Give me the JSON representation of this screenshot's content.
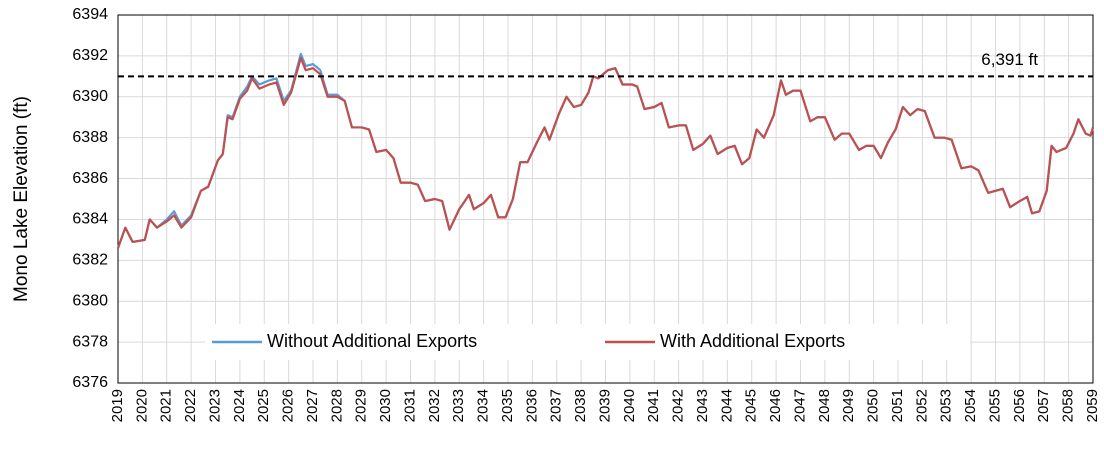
{
  "chart_data": {
    "type": "line",
    "y_label": "Mono Lake Elevation (ft)",
    "x": [
      2019.0,
      2019.3,
      2019.6,
      2020.1,
      2020.3,
      2020.6,
      2021.0,
      2021.3,
      2021.6,
      2022.0,
      2022.4,
      2022.7,
      2023.1,
      2023.3,
      2023.5,
      2023.7,
      2024.0,
      2024.3,
      2024.5,
      2024.8,
      2025.2,
      2025.5,
      2025.8,
      2026.1,
      2026.5,
      2026.7,
      2027.0,
      2027.3,
      2027.6,
      2028.0,
      2028.3,
      2028.6,
      2029.0,
      2029.3,
      2029.6,
      2030.0,
      2030.3,
      2030.6,
      2031.0,
      2031.3,
      2031.6,
      2032.0,
      2032.3,
      2032.6,
      2033.0,
      2033.4,
      2033.6,
      2034.0,
      2034.3,
      2034.6,
      2034.9,
      2035.2,
      2035.5,
      2035.8,
      2036.2,
      2036.5,
      2036.7,
      2037.1,
      2037.4,
      2037.7,
      2038.0,
      2038.3,
      2038.5,
      2038.7,
      2039.1,
      2039.4,
      2039.7,
      2040.1,
      2040.3,
      2040.6,
      2041.0,
      2041.3,
      2041.6,
      2042.0,
      2042.3,
      2042.6,
      2043.0,
      2043.3,
      2043.6,
      2044.0,
      2044.3,
      2044.6,
      2044.9,
      2045.2,
      2045.5,
      2045.9,
      2046.2,
      2046.4,
      2046.7,
      2047.0,
      2047.4,
      2047.7,
      2048.0,
      2048.4,
      2048.7,
      2049.0,
      2049.4,
      2049.7,
      2050.0,
      2050.3,
      2050.6,
      2050.9,
      2051.2,
      2051.5,
      2051.8,
      2052.1,
      2052.5,
      2052.9,
      2053.2,
      2053.6,
      2054.0,
      2054.3,
      2054.7,
      2055.0,
      2055.3,
      2055.6,
      2056.0,
      2056.3,
      2056.5,
      2056.8,
      2057.1,
      2057.3,
      2057.5,
      2057.9,
      2058.2,
      2058.4,
      2058.7,
      2058.9,
      2059.0
    ],
    "series": [
      {
        "name": "Without Additional Exports",
        "color": "#5b9bd5",
        "values": [
          6382.6,
          6383.6,
          6382.9,
          6383.0,
          6384.0,
          6383.6,
          6384.0,
          6384.4,
          6383.7,
          6384.2,
          6385.4,
          6385.6,
          6386.9,
          6387.2,
          6389.1,
          6389.0,
          6390.0,
          6390.5,
          6391.0,
          6390.6,
          6390.8,
          6390.9,
          6389.8,
          6390.3,
          6392.1,
          6391.5,
          6391.6,
          6391.3,
          6390.1,
          6390.1,
          6389.8,
          6388.5,
          6388.5,
          6388.4,
          6387.3,
          6387.4,
          6387.0,
          6385.8,
          6385.8,
          6385.7,
          6384.9,
          6385.0,
          6384.9,
          6383.5,
          6384.5,
          6385.2,
          6384.5,
          6384.8,
          6385.2,
          6384.1,
          6384.1,
          6385.0,
          6386.8,
          6386.8,
          6387.8,
          6388.5,
          6387.9,
          6389.2,
          6390.0,
          6389.5,
          6389.6,
          6390.2,
          6391.0,
          6390.9,
          6391.3,
          6391.4,
          6390.6,
          6390.6,
          6390.5,
          6389.4,
          6389.5,
          6389.7,
          6388.5,
          6388.6,
          6388.6,
          6387.4,
          6387.7,
          6388.1,
          6387.2,
          6387.5,
          6387.6,
          6386.7,
          6387.0,
          6388.4,
          6388.0,
          6389.1,
          6390.8,
          6390.1,
          6390.3,
          6390.3,
          6388.8,
          6389.0,
          6389.0,
          6387.9,
          6388.2,
          6388.2,
          6387.4,
          6387.6,
          6387.6,
          6387.0,
          6387.8,
          6388.4,
          6389.5,
          6389.1,
          6389.4,
          6389.3,
          6388.0,
          6388.0,
          6387.9,
          6386.5,
          6386.6,
          6386.4,
          6385.3,
          6385.4,
          6385.5,
          6384.6,
          6384.9,
          6385.1,
          6384.3,
          6384.4,
          6385.4,
          6387.6,
          6387.3,
          6387.5,
          6388.2,
          6388.9,
          6388.2,
          6388.1,
          6388.5
        ]
      },
      {
        "name": "With Additional Exports",
        "color": "#c0504d",
        "values": [
          6382.6,
          6383.6,
          6382.9,
          6383.0,
          6384.0,
          6383.6,
          6383.9,
          6384.2,
          6383.6,
          6384.1,
          6385.4,
          6385.6,
          6386.9,
          6387.2,
          6389.0,
          6388.9,
          6389.9,
          6390.3,
          6390.9,
          6390.4,
          6390.6,
          6390.7,
          6389.6,
          6390.2,
          6391.9,
          6391.3,
          6391.4,
          6391.1,
          6390.0,
          6390.0,
          6389.8,
          6388.5,
          6388.5,
          6388.4,
          6387.3,
          6387.4,
          6387.0,
          6385.8,
          6385.8,
          6385.7,
          6384.9,
          6385.0,
          6384.9,
          6383.5,
          6384.5,
          6385.2,
          6384.5,
          6384.8,
          6385.2,
          6384.1,
          6384.1,
          6385.0,
          6386.8,
          6386.8,
          6387.8,
          6388.5,
          6387.9,
          6389.2,
          6390.0,
          6389.5,
          6389.6,
          6390.2,
          6391.0,
          6390.9,
          6391.3,
          6391.4,
          6390.6,
          6390.6,
          6390.5,
          6389.4,
          6389.5,
          6389.7,
          6388.5,
          6388.6,
          6388.6,
          6387.4,
          6387.7,
          6388.1,
          6387.2,
          6387.5,
          6387.6,
          6386.7,
          6387.0,
          6388.4,
          6388.0,
          6389.1,
          6390.8,
          6390.1,
          6390.3,
          6390.3,
          6388.8,
          6389.0,
          6389.0,
          6387.9,
          6388.2,
          6388.2,
          6387.4,
          6387.6,
          6387.6,
          6387.0,
          6387.8,
          6388.4,
          6389.5,
          6389.1,
          6389.4,
          6389.3,
          6388.0,
          6388.0,
          6387.9,
          6386.5,
          6386.6,
          6386.4,
          6385.3,
          6385.4,
          6385.5,
          6384.6,
          6384.9,
          6385.1,
          6384.3,
          6384.4,
          6385.4,
          6387.6,
          6387.3,
          6387.5,
          6388.2,
          6388.9,
          6388.2,
          6388.1,
          6388.5
        ]
      }
    ],
    "reference_line": {
      "value": 6391,
      "label": "6,391 ft"
    },
    "xlim": [
      2019,
      2059
    ],
    "xticks": [
      2019,
      2020,
      2021,
      2022,
      2023,
      2024,
      2025,
      2026,
      2027,
      2028,
      2029,
      2030,
      2031,
      2032,
      2033,
      2034,
      2035,
      2036,
      2037,
      2038,
      2039,
      2040,
      2041,
      2042,
      2043,
      2044,
      2045,
      2046,
      2047,
      2048,
      2049,
      2050,
      2051,
      2052,
      2053,
      2054,
      2055,
      2056,
      2057,
      2058,
      2059
    ],
    "ylim": [
      6376,
      6394
    ],
    "yticks": [
      6376,
      6378,
      6380,
      6382,
      6384,
      6386,
      6388,
      6390,
      6392,
      6394
    ],
    "grid": true,
    "legend": "lower center"
  }
}
